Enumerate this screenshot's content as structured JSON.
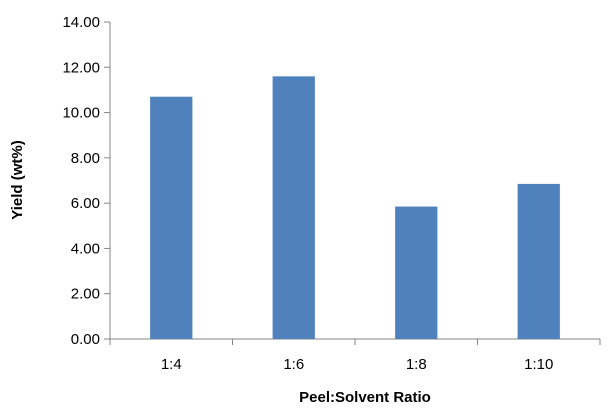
{
  "chart_data": {
    "type": "bar",
    "title": "",
    "xlabel": "Peel:Solvent Ratio",
    "ylabel": "Yield (wt%)",
    "categories": [
      "1:4",
      "1:6",
      "1:8",
      "1:10"
    ],
    "values": [
      10.7,
      11.6,
      5.85,
      6.85
    ],
    "ylim": [
      0,
      14
    ],
    "yticks": [
      "0.00",
      "2.00",
      "4.00",
      "6.00",
      "8.00",
      "10.00",
      "12.00",
      "14.00"
    ],
    "grid": false,
    "legend": "none",
    "colors": {
      "bar": "#4f81bd",
      "axis": "#868686"
    }
  }
}
